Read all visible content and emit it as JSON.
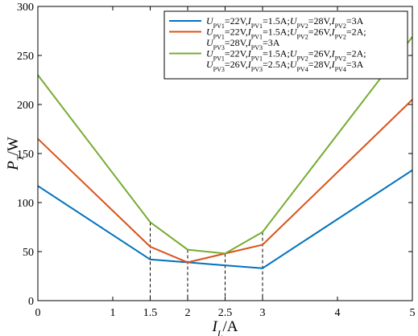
{
  "chart_data": {
    "type": "line",
    "xlabel": {
      "main": "I",
      "sub": "L",
      "unit": "/A"
    },
    "ylabel": {
      "main": "P",
      "sub": "T",
      "unit": "/W"
    },
    "xlim": [
      0,
      5
    ],
    "ylim": [
      0,
      300
    ],
    "x_ticks": [
      0,
      1,
      1.5,
      2,
      2.5,
      3,
      4,
      5
    ],
    "x_tick_labels": [
      "0",
      "1",
      "1.5",
      "2",
      "2.5",
      "3",
      "4",
      "5"
    ],
    "y_ticks": [
      0,
      50,
      100,
      150,
      200,
      250,
      300
    ],
    "y_tick_labels": [
      "0",
      "50",
      "100",
      "150",
      "200",
      "250",
      "300"
    ],
    "grid": false,
    "legend_position": "top-right",
    "reference_lines": {
      "x": [
        1.5,
        2,
        2.5,
        3
      ],
      "style": "dashed"
    },
    "series": [
      {
        "color": "#0072BD",
        "legend_lines": [
          [
            [
              "U",
              "PV1",
              "=22V,"
            ],
            [
              "I",
              "PV1",
              "=1.5A;"
            ],
            [
              "U",
              "PV2",
              "=28V,"
            ],
            [
              "I",
              "PV2",
              "=3A"
            ]
          ]
        ],
        "x": [
          0,
          1.5,
          2,
          2.5,
          3,
          5
        ],
        "y": [
          117,
          42,
          39,
          36,
          33,
          133
        ]
      },
      {
        "color": "#D95319",
        "legend_lines": [
          [
            [
              "U",
              "PV1",
              "=22V,"
            ],
            [
              "I",
              "PV1",
              "=1.5A;"
            ],
            [
              "U",
              "PV2",
              "=26V,"
            ],
            [
              "I",
              "PV2",
              "=2A;"
            ]
          ],
          [
            [
              "U",
              "PV3",
              "=28V,"
            ],
            [
              "I",
              "PV3",
              "=3A"
            ]
          ]
        ],
        "x": [
          0,
          1.5,
          2,
          2.5,
          3,
          5
        ],
        "y": [
          165,
          55,
          39,
          48,
          57,
          205
        ]
      },
      {
        "color": "#77AC30",
        "legend_lines": [
          [
            [
              "U",
              "PV1",
              "=22V,"
            ],
            [
              "I",
              "PV1",
              "=1.5A;"
            ],
            [
              "U",
              "PV2",
              "=26V,"
            ],
            [
              "I",
              "PV2",
              "=2A;"
            ]
          ],
          [
            [
              "U",
              "PV3",
              "=26V,"
            ],
            [
              "I",
              "PV3",
              "=2.5A;"
            ],
            [
              "U",
              "PV4",
              "=28V,"
            ],
            [
              "I",
              "PV4",
              "=3A"
            ]
          ]
        ],
        "x": [
          0,
          1.5,
          2,
          2.5,
          3,
          5
        ],
        "y": [
          230,
          80,
          52,
          48,
          70,
          269
        ]
      }
    ]
  }
}
